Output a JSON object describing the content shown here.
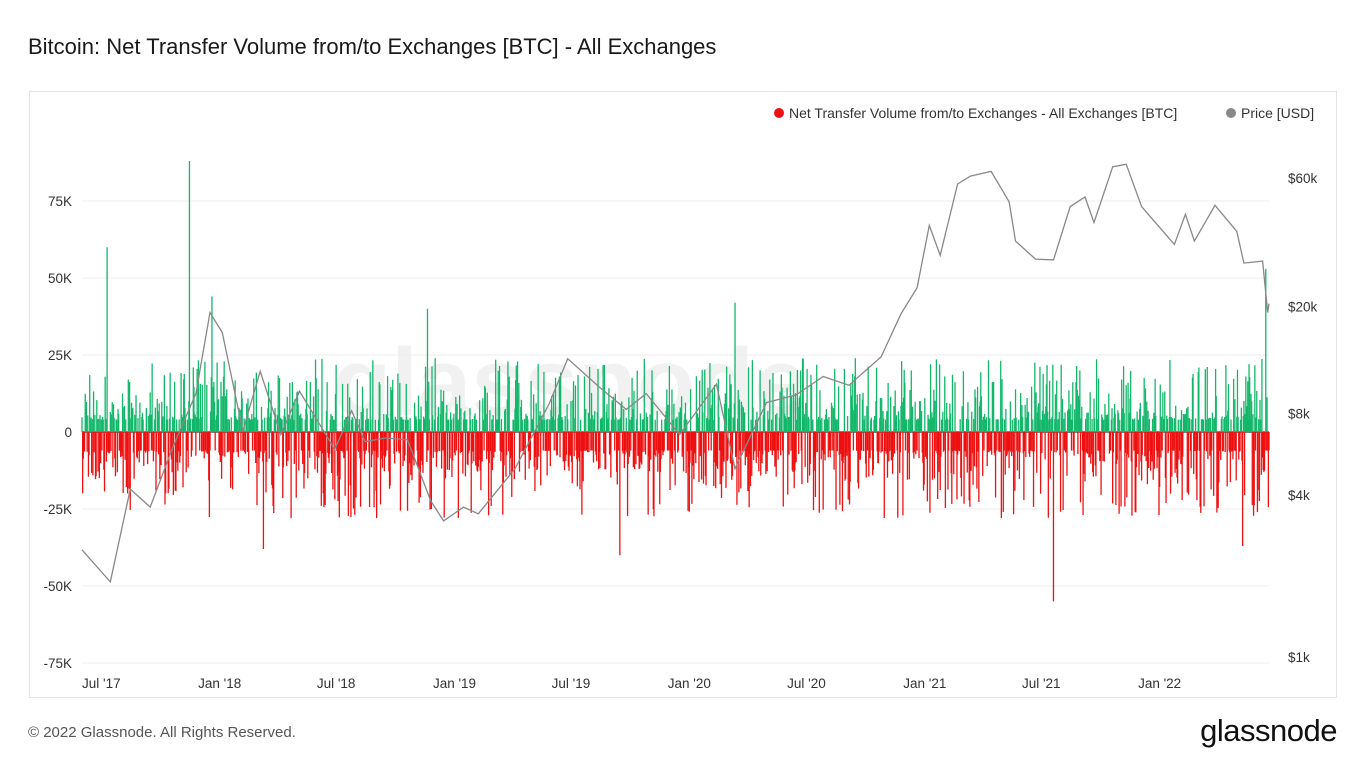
{
  "page": {
    "title": "Bitcoin: Net Transfer Volume from/to Exchanges [BTC] - All Exchanges",
    "copyright": "© 2022 Glassnode. All Rights Reserved.",
    "brand": "glassnode",
    "watermark": "glassnode"
  },
  "chart_data": {
    "type": "bar",
    "x_ticks": [
      "Jul '17",
      "Jan '18",
      "Jul '18",
      "Jan '19",
      "Jul '19",
      "Jan '20",
      "Jul '20",
      "Jan '21",
      "Jul '21",
      "Jan '22"
    ],
    "x_range": [
      "2017-06-01",
      "2022-06-20"
    ],
    "y_left": {
      "ticks": [
        "75K",
        "50K",
        "25K",
        "0",
        "-25K",
        "-50K",
        "-75K"
      ],
      "tick_values": [
        75000,
        50000,
        25000,
        0,
        -25000,
        -50000,
        -75000
      ],
      "range": [
        -75000,
        90000
      ]
    },
    "y_right": {
      "ticks": [
        "$60k",
        "$20k",
        "$8k",
        "$4k",
        "$1k"
      ],
      "tick_values": [
        60000,
        20000,
        8000,
        4000,
        1000
      ],
      "scale": "log"
    },
    "legend": {
      "position": "top-right"
    },
    "series": [
      {
        "name": "Net Transfer Volume from/to Exchanges - All Exchanges [BTC]",
        "color_positive": "#12b76a",
        "color_negative": "#ee1111",
        "notable_points": [
          {
            "date": "2017-07-10",
            "value": 60000
          },
          {
            "date": "2017-11-15",
            "value": 88000
          },
          {
            "date": "2017-12-20",
            "value": 44000
          },
          {
            "date": "2018-03-10",
            "value": -38000
          },
          {
            "date": "2018-11-20",
            "value": 40000
          },
          {
            "date": "2019-09-15",
            "value": -40000
          },
          {
            "date": "2020-03-12",
            "value": 42000
          },
          {
            "date": "2021-07-20",
            "value": -55000
          },
          {
            "date": "2022-05-10",
            "value": -37000
          },
          {
            "date": "2022-06-15",
            "value": 53000
          }
        ]
      },
      {
        "name": "Price [USD]",
        "color": "#888888",
        "axis": "right",
        "points": [
          [
            "2017-06-01",
            2500
          ],
          [
            "2017-07-15",
            1900
          ],
          [
            "2017-08-15",
            4200
          ],
          [
            "2017-09-15",
            3600
          ],
          [
            "2017-10-20",
            6000
          ],
          [
            "2017-11-25",
            9500
          ],
          [
            "2017-12-17",
            19000
          ],
          [
            "2018-01-05",
            16000
          ],
          [
            "2018-02-06",
            6900
          ],
          [
            "2018-03-05",
            11500
          ],
          [
            "2018-04-06",
            6700
          ],
          [
            "2018-05-05",
            9700
          ],
          [
            "2018-06-29",
            5900
          ],
          [
            "2018-07-25",
            8200
          ],
          [
            "2018-08-15",
            6300
          ],
          [
            "2018-09-15",
            6500
          ],
          [
            "2018-10-20",
            6400
          ],
          [
            "2018-11-25",
            3800
          ],
          [
            "2018-12-15",
            3200
          ],
          [
            "2019-01-15",
            3600
          ],
          [
            "2019-02-07",
            3400
          ],
          [
            "2019-04-05",
            5000
          ],
          [
            "2019-05-28",
            8700
          ],
          [
            "2019-06-26",
            12800
          ],
          [
            "2019-08-15",
            10000
          ],
          [
            "2019-09-25",
            8300
          ],
          [
            "2019-10-26",
            9500
          ],
          [
            "2019-12-17",
            6700
          ],
          [
            "2020-02-12",
            10300
          ],
          [
            "2020-03-12",
            5000
          ],
          [
            "2020-04-30",
            8800
          ],
          [
            "2020-06-15",
            9400
          ],
          [
            "2020-07-27",
            11000
          ],
          [
            "2020-09-05",
            10200
          ],
          [
            "2020-10-25",
            13000
          ],
          [
            "2020-11-25",
            18800
          ],
          [
            "2020-12-20",
            23500
          ],
          [
            "2021-01-08",
            40000
          ],
          [
            "2021-01-25",
            31000
          ],
          [
            "2021-02-21",
            57000
          ],
          [
            "2021-03-13",
            61000
          ],
          [
            "2021-04-14",
            63500
          ],
          [
            "2021-05-12",
            49000
          ],
          [
            "2021-05-22",
            35000
          ],
          [
            "2021-06-22",
            30000
          ],
          [
            "2021-07-20",
            29800
          ],
          [
            "2021-08-15",
            47000
          ],
          [
            "2021-09-07",
            51000
          ],
          [
            "2021-09-21",
            41000
          ],
          [
            "2021-10-20",
            66000
          ],
          [
            "2021-11-10",
            67500
          ],
          [
            "2021-12-04",
            47000
          ],
          [
            "2022-01-24",
            34000
          ],
          [
            "2022-02-10",
            44000
          ],
          [
            "2022-02-24",
            35000
          ],
          [
            "2022-03-28",
            47500
          ],
          [
            "2022-05-01",
            38000
          ],
          [
            "2022-05-12",
            29000
          ],
          [
            "2022-06-10",
            29500
          ],
          [
            "2022-06-18",
            19000
          ],
          [
            "2022-06-20",
            20500
          ]
        ]
      }
    ]
  }
}
